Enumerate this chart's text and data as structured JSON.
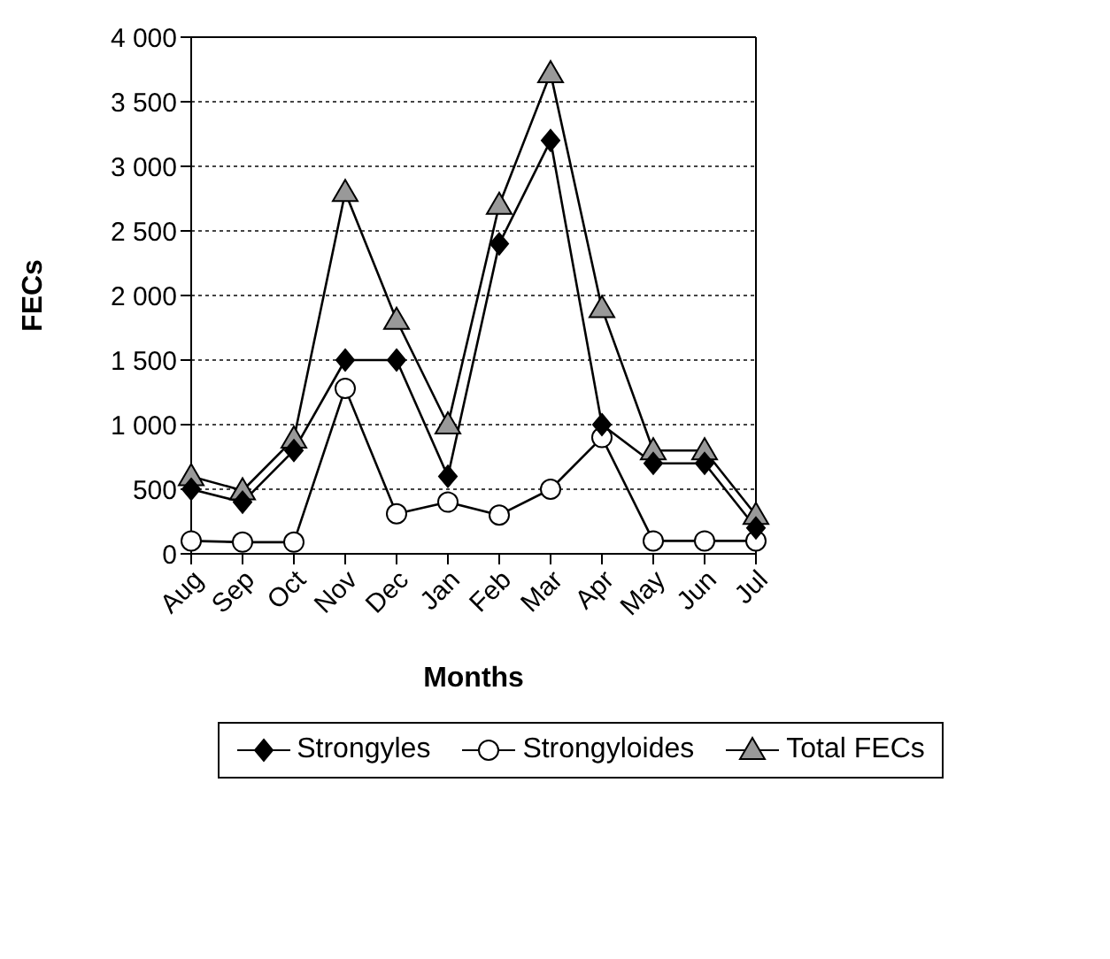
{
  "chart_data": {
    "type": "line",
    "xlabel": "Months",
    "ylabel": "FECs",
    "categories": [
      "Aug",
      "Sep",
      "Oct",
      "Nov",
      "Dec",
      "Jan",
      "Feb",
      "Mar",
      "Apr",
      "May",
      "Jun",
      "Jul"
    ],
    "ylim": [
      0,
      4000
    ],
    "yticks": [
      0,
      {
        "value": 500,
        "label": "500"
      },
      {
        "value": 1000,
        "label": "1 000"
      },
      {
        "value": 1500,
        "label": "1 500"
      },
      {
        "value": 2000,
        "label": "2 000"
      },
      {
        "value": 2500,
        "label": "2 500"
      },
      {
        "value": 3000,
        "label": "3 000"
      },
      {
        "value": 3500,
        "label": "3 500"
      },
      {
        "value": 4000,
        "label": "4 000"
      }
    ],
    "grid": "y",
    "legend": "bottom",
    "series": [
      {
        "name": "Strongyles",
        "color": "#000000",
        "marker": "diamond",
        "values": [
          500,
          400,
          800,
          1500,
          1500,
          600,
          2400,
          3200,
          1000,
          700,
          700,
          200
        ]
      },
      {
        "name": "Strongyloides",
        "color": "#ffffff",
        "marker": "circle",
        "values": [
          100,
          90,
          90,
          1280,
          310,
          400,
          300,
          500,
          900,
          100,
          100,
          100
        ]
      },
      {
        "name": "Total FECs",
        "color": "#999999",
        "marker": "triangle",
        "values": [
          600,
          490,
          890,
          2800,
          1810,
          1000,
          2700,
          3720,
          1900,
          800,
          800,
          300
        ]
      }
    ]
  }
}
